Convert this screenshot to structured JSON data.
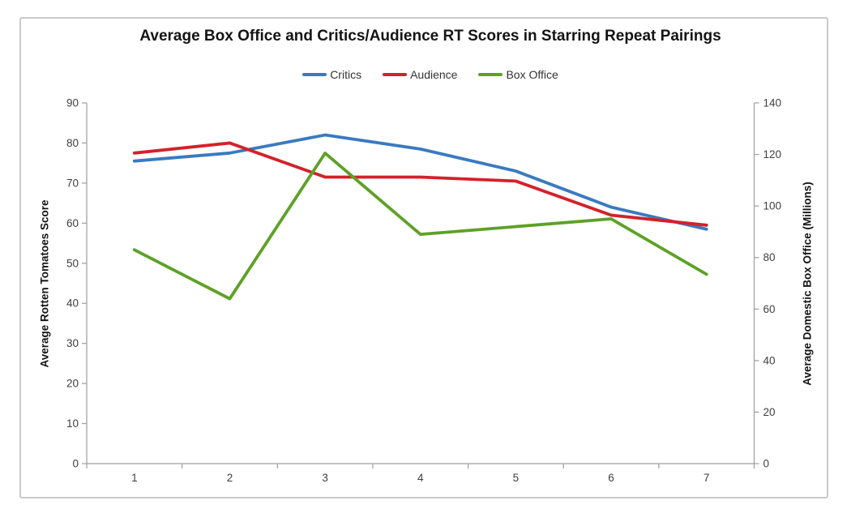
{
  "chart_data": {
    "type": "line",
    "title": "Average Box Office and Critics/Audience RT Scores in Starring Repeat Pairings",
    "categories": [
      "1",
      "2",
      "3",
      "4",
      "5",
      "6",
      "7"
    ],
    "left_axis": {
      "title": "Average Rotten Tomatoes Score",
      "min": 0,
      "max": 90,
      "ticks": [
        "0",
        "10",
        "20",
        "30",
        "40",
        "50",
        "60",
        "70",
        "80",
        "90"
      ]
    },
    "right_axis": {
      "title": "Average Domestic Box Office (Millions)",
      "min": 0,
      "max": 140,
      "ticks": [
        "0",
        "20",
        "40",
        "60",
        "80",
        "100",
        "120",
        "140"
      ]
    },
    "legend_position": "top",
    "grid": false,
    "series": [
      {
        "name": "Critics",
        "axis": "left",
        "color": "#3A7AC0",
        "values": [
          75.5,
          77.5,
          82,
          78.5,
          73,
          64,
          58.5
        ]
      },
      {
        "name": "Audience",
        "axis": "left",
        "color": "#D4212A",
        "values": [
          77.5,
          80,
          71.5,
          71.5,
          70.5,
          62,
          59.5
        ]
      },
      {
        "name": "Box Office",
        "axis": "right",
        "color": "#5EA126",
        "values": [
          83,
          64,
          120.5,
          89,
          92,
          95,
          73.5
        ]
      }
    ],
    "style": {
      "axis_line_color": "#9d9d9d",
      "title_color": "#141414",
      "tick_label_color": "#3f3f3f"
    }
  }
}
